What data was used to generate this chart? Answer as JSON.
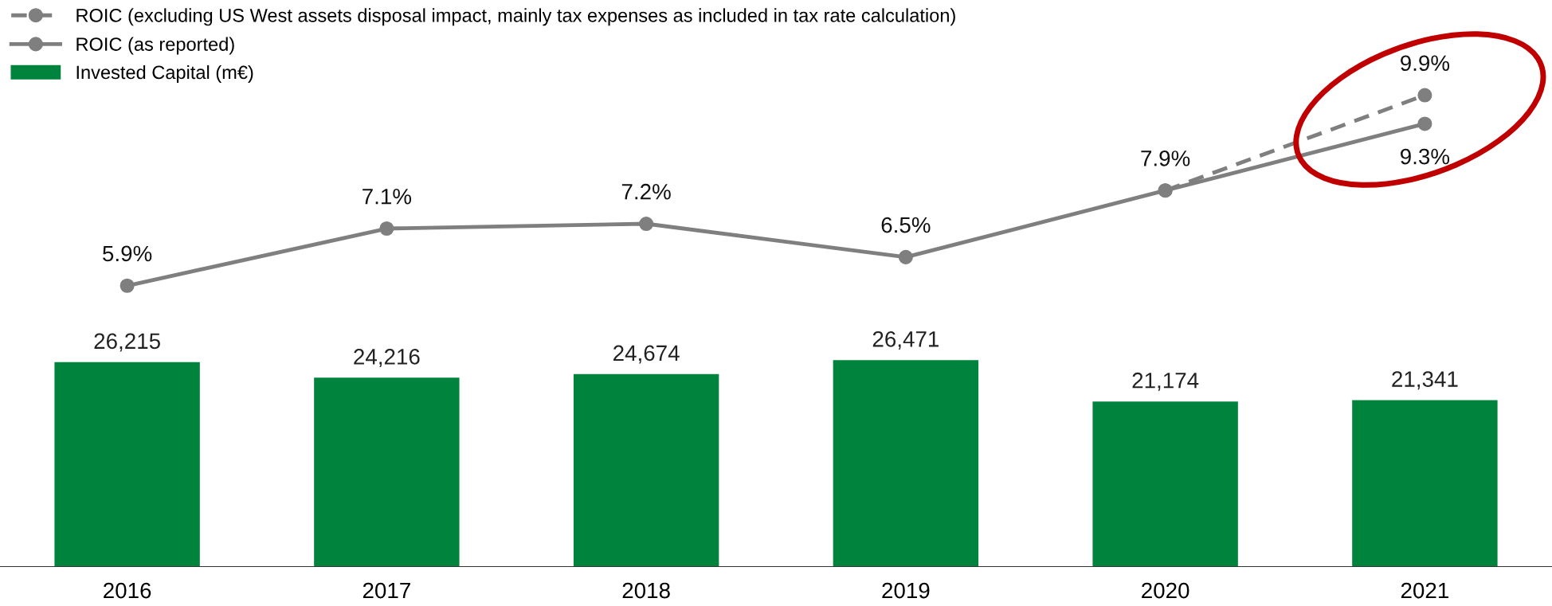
{
  "chart_data": [
    {
      "type": "line",
      "categories": [
        "2016",
        "2017",
        "2018",
        "2019",
        "2020",
        "2021"
      ],
      "tick_labels": false,
      "legend": "top left",
      "marker": "circle",
      "series": [
        {
          "name": "ROIC (excluding US West assets disposal impact, mainly tax expenses as included in tax rate calculation)",
          "color": "#7f7f7f",
          "line_style": "dashed",
          "values": [
            null,
            null,
            null,
            null,
            7.9,
            9.9
          ],
          "value_labels": [
            null,
            null,
            null,
            null,
            null,
            "9.9%"
          ]
        },
        {
          "name": "ROIC (as reported)",
          "color": "#7f7f7f",
          "line_style": "solid",
          "values": [
            5.9,
            7.1,
            7.2,
            6.5,
            7.9,
            9.3
          ],
          "value_labels": [
            "5.9%",
            "7.1%",
            "7.2%",
            "6.5%",
            "7.9%",
            "9.3%"
          ]
        }
      ]
    },
    {
      "type": "bar",
      "categories": [
        "2016",
        "2017",
        "2018",
        "2019",
        "2020",
        "2021"
      ],
      "legend": "top left",
      "series": [
        {
          "name": "Invested Capital (m€)",
          "color": "#00843d",
          "values": [
            26215,
            24216,
            24674,
            26471,
            21174,
            21341
          ],
          "value_labels": [
            "26,215",
            "24,216",
            "24,674",
            "26,471",
            "21,174",
            "21,341"
          ]
        }
      ]
    }
  ]
}
